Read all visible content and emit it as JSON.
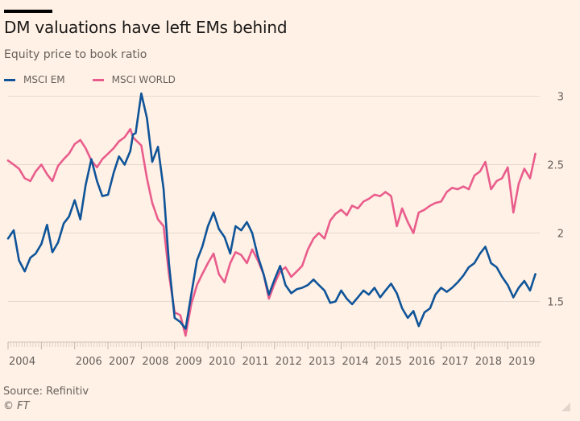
{
  "header": {
    "title": "DM valuations have left EMs behind",
    "subtitle": "Equity price to book ratio"
  },
  "footer": {
    "source": "Source: Refinitiv",
    "copyright": "© FT"
  },
  "chart_data": {
    "type": "line",
    "title": "DM valuations have left EMs behind",
    "subtitle": "Equity price to book ratio",
    "xlabel": "",
    "ylabel": "",
    "ylim": [
      1.25,
      3.05
    ],
    "xlim": [
      2004.0,
      2019.9
    ],
    "yticks": [
      1.5,
      2,
      2.5,
      3
    ],
    "ytick_labels": [
      "1.5",
      "2",
      "2.5",
      "3"
    ],
    "xticks": [
      2004,
      2006,
      2007,
      2008,
      2009,
      2010,
      2011,
      2012,
      2013,
      2014,
      2015,
      2016,
      2017,
      2018,
      2019
    ],
    "xtick_labels": [
      "2004",
      "2006",
      "2007",
      "2008",
      "2009",
      "2010",
      "2011",
      "2012",
      "2013",
      "2014",
      "2015",
      "2016",
      "2017",
      "2018",
      "2019"
    ],
    "grid": "horizontal",
    "legend_position": "top-left",
    "x": [
      2004.0,
      2004.17,
      2004.33,
      2004.5,
      2004.67,
      2004.83,
      2005.0,
      2005.17,
      2005.33,
      2005.5,
      2005.67,
      2005.83,
      2006.0,
      2006.17,
      2006.33,
      2006.5,
      2006.67,
      2006.83,
      2007.0,
      2007.17,
      2007.33,
      2007.5,
      2007.67,
      2007.75,
      2007.83,
      2008.0,
      2008.17,
      2008.33,
      2008.5,
      2008.67,
      2008.83,
      2009.0,
      2009.17,
      2009.33,
      2009.5,
      2009.67,
      2009.83,
      2010.0,
      2010.17,
      2010.33,
      2010.5,
      2010.67,
      2010.83,
      2011.0,
      2011.17,
      2011.33,
      2011.5,
      2011.67,
      2011.83,
      2012.0,
      2012.17,
      2012.33,
      2012.5,
      2012.67,
      2012.83,
      2013.0,
      2013.17,
      2013.33,
      2013.5,
      2013.67,
      2013.83,
      2014.0,
      2014.17,
      2014.33,
      2014.5,
      2014.67,
      2014.83,
      2015.0,
      2015.17,
      2015.33,
      2015.5,
      2015.67,
      2015.83,
      2016.0,
      2016.17,
      2016.33,
      2016.5,
      2016.67,
      2016.83,
      2017.0,
      2017.17,
      2017.33,
      2017.5,
      2017.67,
      2017.83,
      2018.0,
      2018.17,
      2018.33,
      2018.5,
      2018.67,
      2018.83,
      2019.0,
      2019.17,
      2019.33,
      2019.5,
      2019.67,
      2019.83
    ],
    "series": [
      {
        "name": "MSCI EM",
        "color": "#0f5499",
        "values": [
          1.96,
          2.02,
          1.8,
          1.72,
          1.82,
          1.85,
          1.92,
          2.06,
          1.86,
          1.93,
          2.07,
          2.12,
          2.24,
          2.1,
          2.35,
          2.54,
          2.38,
          2.27,
          2.28,
          2.44,
          2.56,
          2.5,
          2.6,
          2.72,
          2.73,
          3.02,
          2.84,
          2.52,
          2.63,
          2.32,
          1.78,
          1.38,
          1.35,
          1.3,
          1.55,
          1.8,
          1.9,
          2.05,
          2.15,
          2.03,
          1.97,
          1.85,
          2.05,
          2.02,
          2.08,
          2.0,
          1.83,
          1.7,
          1.55,
          1.66,
          1.76,
          1.62,
          1.56,
          1.59,
          1.6,
          1.62,
          1.66,
          1.62,
          1.58,
          1.49,
          1.5,
          1.58,
          1.52,
          1.48,
          1.53,
          1.58,
          1.55,
          1.6,
          1.53,
          1.58,
          1.63,
          1.56,
          1.45,
          1.38,
          1.43,
          1.32,
          1.42,
          1.45,
          1.55,
          1.6,
          1.57,
          1.6,
          1.64,
          1.69,
          1.75,
          1.78,
          1.85,
          1.9,
          1.78,
          1.75,
          1.68,
          1.62,
          1.53,
          1.6,
          1.65,
          1.58,
          1.7
        ]
      },
      {
        "name": "MSCI WORLD",
        "color": "#e95d8c",
        "values": [
          2.53,
          2.5,
          2.47,
          2.4,
          2.38,
          2.45,
          2.5,
          2.43,
          2.38,
          2.49,
          2.54,
          2.58,
          2.65,
          2.68,
          2.62,
          2.53,
          2.48,
          2.54,
          2.58,
          2.62,
          2.67,
          2.7,
          2.76,
          2.7,
          2.68,
          2.64,
          2.4,
          2.22,
          2.1,
          2.05,
          1.7,
          1.42,
          1.4,
          1.25,
          1.48,
          1.62,
          1.7,
          1.78,
          1.85,
          1.7,
          1.64,
          1.78,
          1.86,
          1.84,
          1.78,
          1.88,
          1.8,
          1.7,
          1.52,
          1.63,
          1.72,
          1.75,
          1.68,
          1.72,
          1.76,
          1.88,
          1.96,
          2.0,
          1.96,
          2.09,
          2.14,
          2.17,
          2.13,
          2.2,
          2.18,
          2.23,
          2.25,
          2.28,
          2.27,
          2.3,
          2.27,
          2.05,
          2.18,
          2.08,
          2.0,
          2.15,
          2.17,
          2.2,
          2.22,
          2.23,
          2.3,
          2.33,
          2.32,
          2.34,
          2.32,
          2.42,
          2.45,
          2.52,
          2.32,
          2.38,
          2.4,
          2.48,
          2.15,
          2.36,
          2.47,
          2.4,
          2.58
        ]
      }
    ]
  }
}
